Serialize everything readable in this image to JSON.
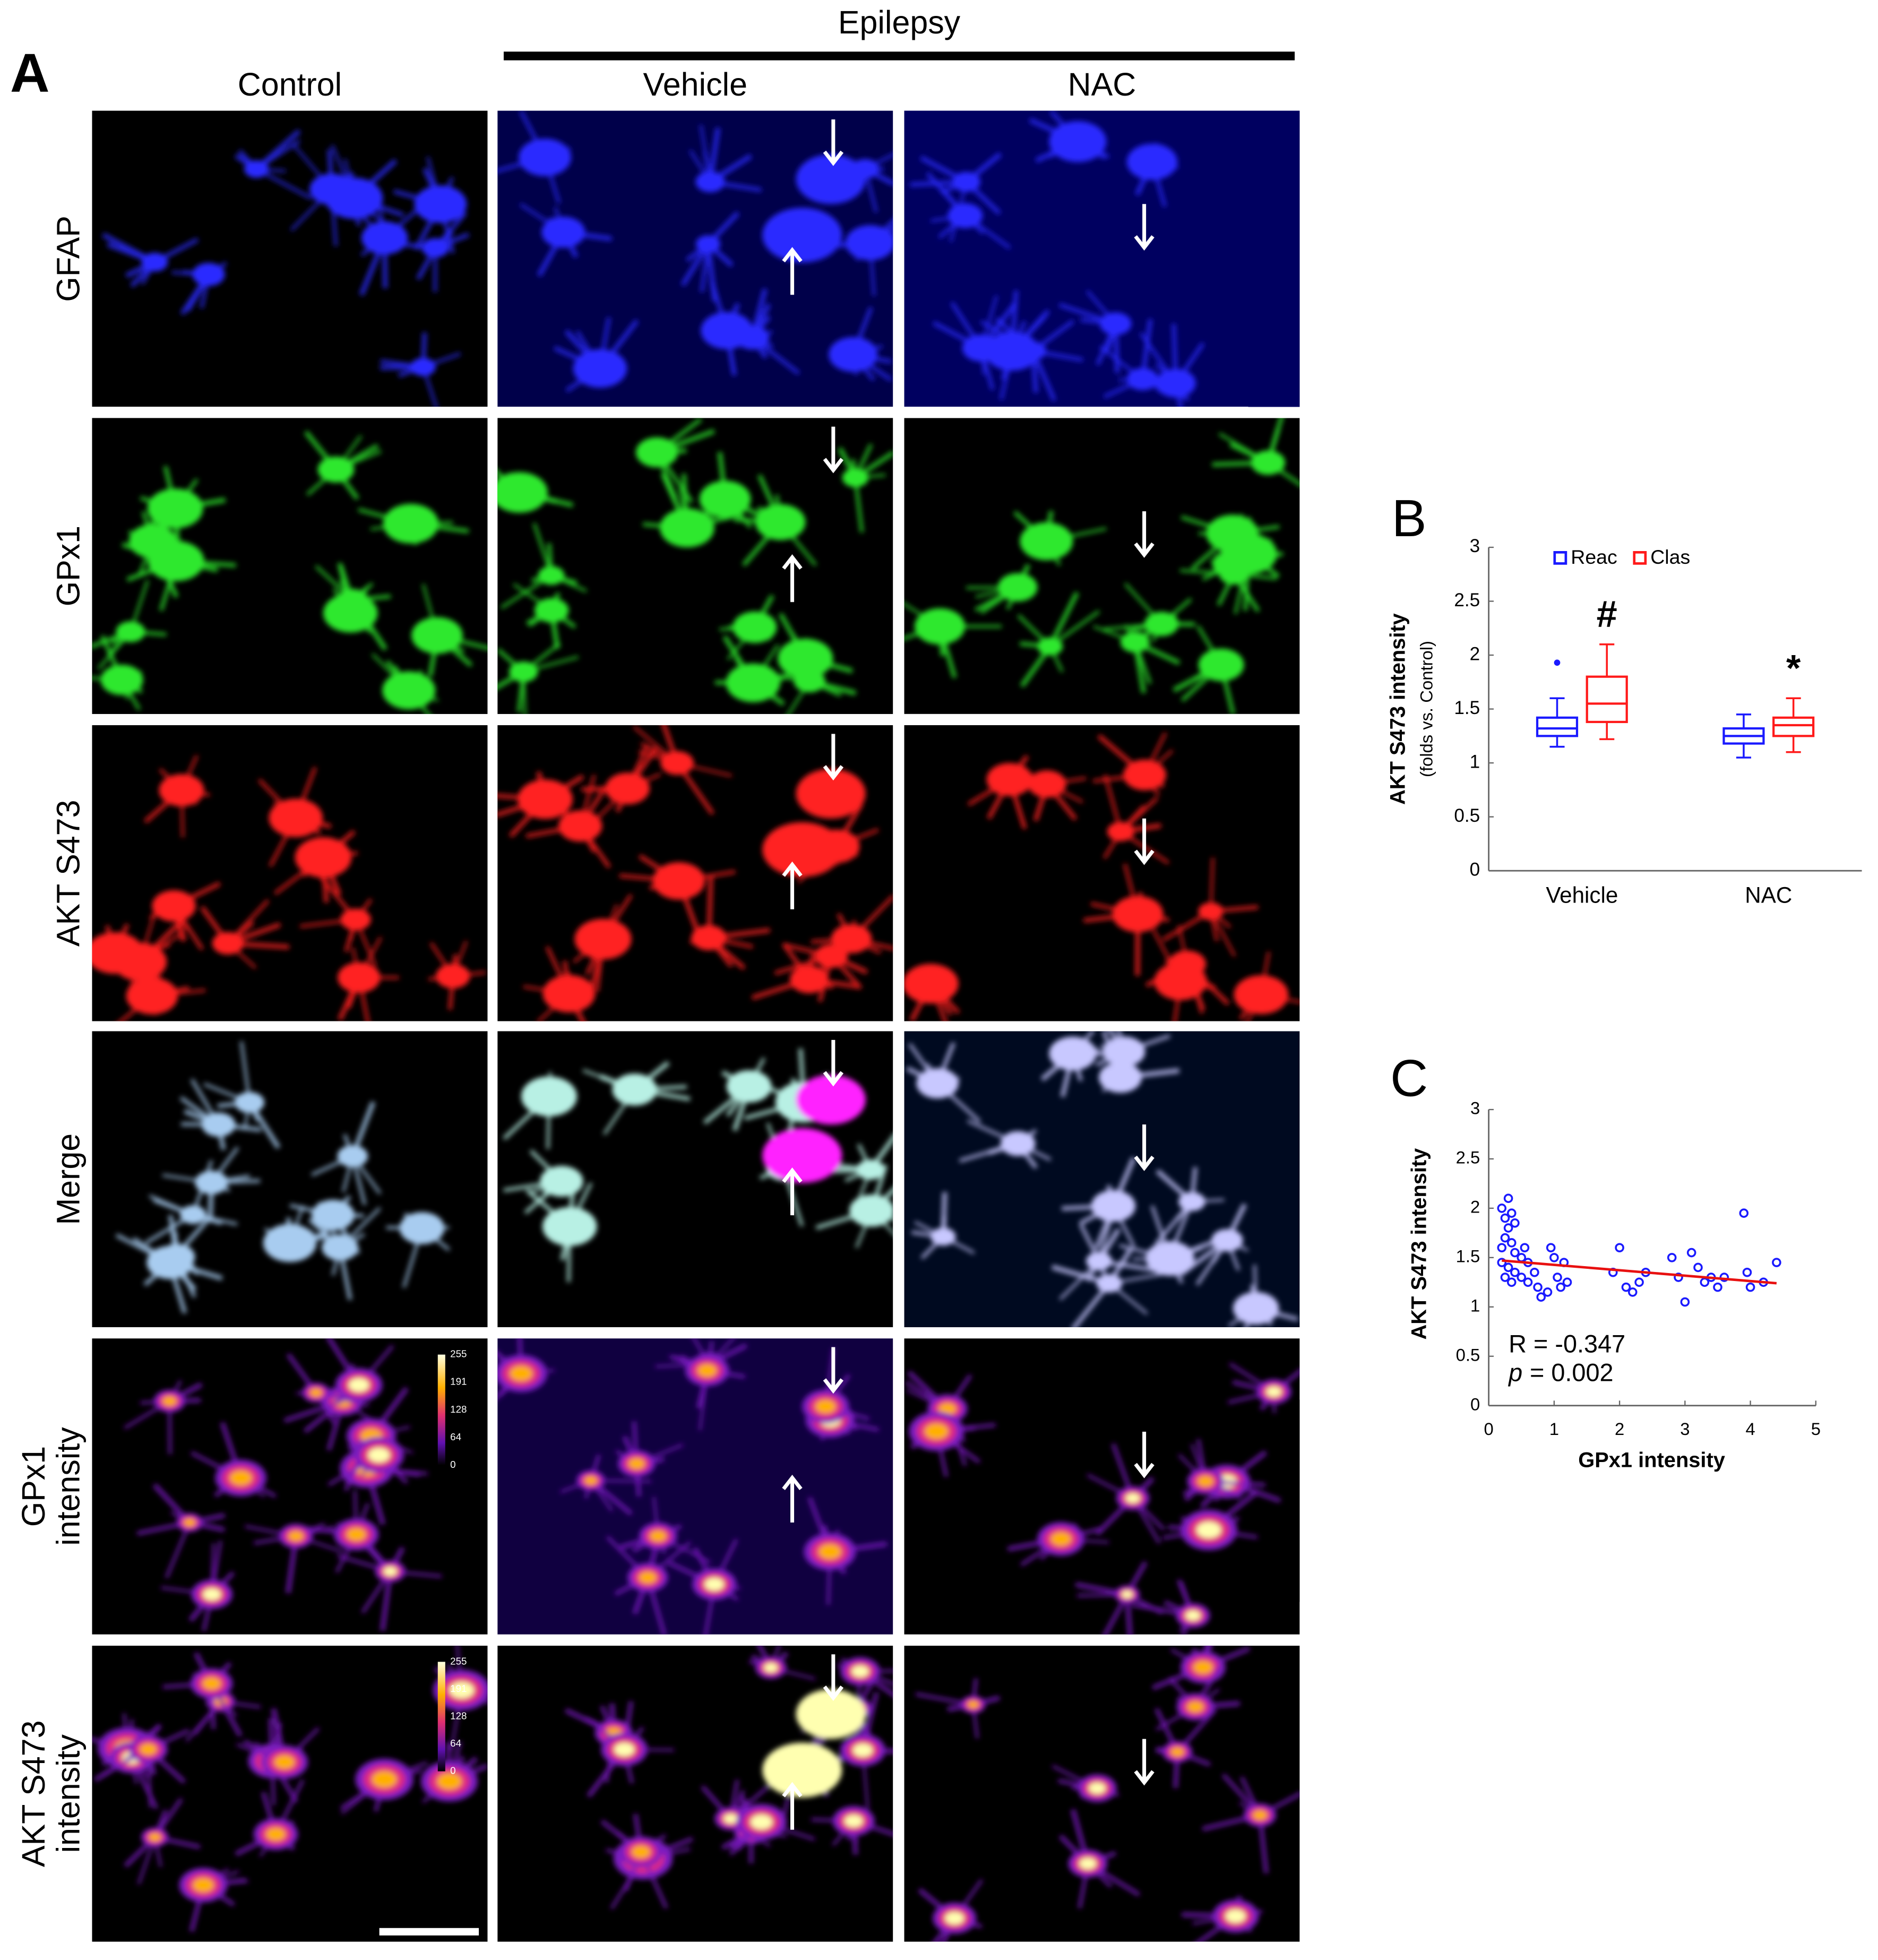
{
  "panel_a": {
    "panel_label": "A",
    "group_label": "Epilepsy",
    "columns": [
      "Control",
      "Vehicle",
      "NAC"
    ],
    "rows": [
      [
        "GFAP"
      ],
      [
        "GPx1"
      ],
      [
        "AKT S473"
      ],
      [
        "Merge"
      ],
      [
        "GPx1",
        "intensity"
      ],
      [
        "AKT S473",
        "intensity"
      ]
    ],
    "colorbar_ticks": [
      255,
      191,
      128,
      64,
      0
    ]
  },
  "chart_data": [
    {
      "type": "box",
      "panel_label": "B",
      "y_label": "AKT S473 intensity",
      "y_sublabel": "(folds vs. Control)",
      "categories": [
        "Vehicle",
        "NAC"
      ],
      "legend": "top",
      "series": [
        {
          "name": "Reac",
          "color": "#1a1aff",
          "min": [
            1.15,
            1.05
          ],
          "q1": [
            1.25,
            1.18
          ],
          "median": [
            1.32,
            1.25
          ],
          "q3": [
            1.42,
            1.32
          ],
          "max": [
            1.6,
            1.45
          ],
          "outliers": [
            [
              1.93
            ],
            []
          ]
        },
        {
          "name": "Clas",
          "color": "#ff1a1a",
          "min": [
            1.22,
            1.1
          ],
          "q1": [
            1.38,
            1.25
          ],
          "median": [
            1.55,
            1.35
          ],
          "q3": [
            1.8,
            1.42
          ],
          "max": [
            2.1,
            1.6
          ],
          "outliers": [
            [],
            []
          ]
        }
      ],
      "annotations": [
        "#",
        "*"
      ],
      "ylim": [
        0,
        3
      ],
      "yticks": [
        0,
        0.5,
        1,
        1.5,
        2,
        2.5,
        3
      ]
    },
    {
      "type": "scatter",
      "panel_label": "C",
      "x_label": "GPx1 intensity",
      "y_label": "AKT S473 intensity",
      "stat_r": "R = -0.347",
      "stat_p_symbol": "p",
      "stat_p_value": "= 0.002",
      "color": "#1a1aff",
      "fit_color": "#e81010",
      "x": [
        0.2,
        0.25,
        0.3,
        0.35,
        0.3,
        0.4,
        0.2,
        0.25,
        0.35,
        0.4,
        0.2,
        0.3,
        0.4,
        0.25,
        0.35,
        0.5,
        0.55,
        0.6,
        0.5,
        0.6,
        0.7,
        0.75,
        0.8,
        0.9,
        0.95,
        1.0,
        1.05,
        1.1,
        1.15,
        1.2,
        2.0,
        1.9,
        2.1,
        2.2,
        2.3,
        2.4,
        2.8,
        2.9,
        3.0,
        3.1,
        3.2,
        3.3,
        3.4,
        3.5,
        3.6,
        3.9,
        3.95,
        4.0,
        4.2,
        4.4
      ],
      "values": [
        2.0,
        1.9,
        2.1,
        1.95,
        1.8,
        1.85,
        1.6,
        1.7,
        1.65,
        1.55,
        1.45,
        1.4,
        1.35,
        1.3,
        1.25,
        1.5,
        1.6,
        1.45,
        1.3,
        1.25,
        1.35,
        1.2,
        1.1,
        1.15,
        1.6,
        1.5,
        1.3,
        1.2,
        1.45,
        1.25,
        1.6,
        1.35,
        1.2,
        1.15,
        1.25,
        1.35,
        1.5,
        1.3,
        1.05,
        1.55,
        1.4,
        1.25,
        1.3,
        1.2,
        1.3,
        1.95,
        1.35,
        1.2,
        1.25,
        1.45
      ],
      "fit_x": [
        0.2,
        4.4
      ],
      "fit_y": [
        1.47,
        1.24
      ],
      "xlim": [
        0,
        5
      ],
      "xticks": [
        0,
        1,
        2,
        3,
        4,
        5
      ],
      "ylim": [
        0,
        3
      ],
      "yticks": [
        0,
        0.5,
        1,
        1.5,
        2,
        2.5,
        3
      ]
    }
  ]
}
